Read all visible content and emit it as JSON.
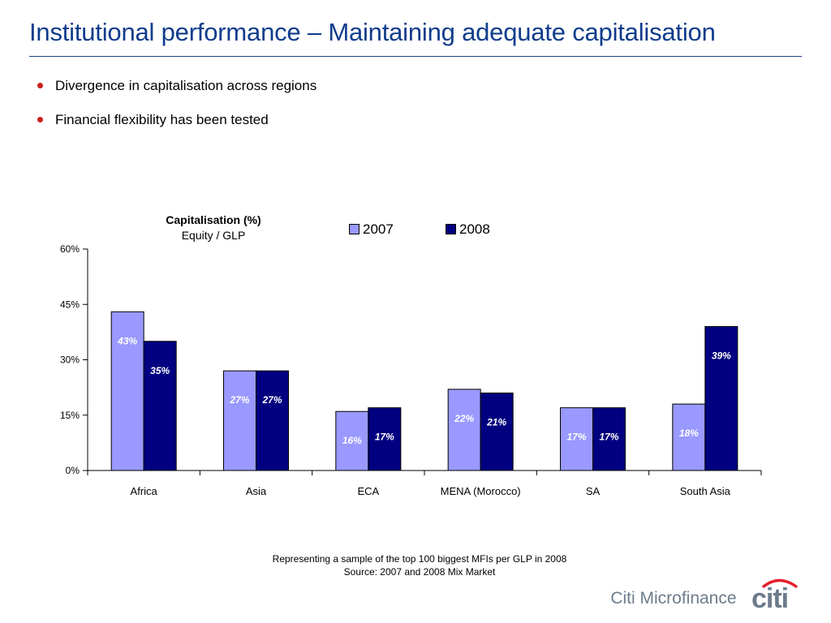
{
  "slide": {
    "title": "Institutional performance – Maintaining adequate capitalisation"
  },
  "bullets": [
    "Divergence in capitalisation across regions",
    "Financial flexibility has been tested"
  ],
  "chart_data": {
    "type": "bar",
    "title": "Capitalisation (%)",
    "subtitle": "Equity / GLP",
    "categories": [
      "Africa",
      "Asia",
      "ECA",
      "MENA (Morocco)",
      "SA",
      "South Asia"
    ],
    "series": [
      {
        "name": "2007",
        "values": [
          43,
          27,
          16,
          22,
          17,
          18
        ],
        "labels": [
          "43%",
          "27%",
          "16%",
          "22%",
          "17%",
          "18%"
        ],
        "color": "#9999ff"
      },
      {
        "name": "2008",
        "values": [
          35,
          27,
          17,
          21,
          17,
          39
        ],
        "labels": [
          "35%",
          "27%",
          "17%",
          "21%",
          "17%",
          "39%"
        ],
        "color": "#000080"
      }
    ],
    "ylim": [
      0,
      60
    ],
    "yticks": [
      0,
      15,
      30,
      45,
      60
    ],
    "ytick_labels": [
      "0%",
      "15%",
      "30%",
      "45%",
      "60%"
    ],
    "xlabel": "",
    "ylabel": "",
    "grid": false,
    "legend_position": "top"
  },
  "footnotes": [
    "Representing a sample of the top 100 biggest MFIs per GLP in 2008",
    "Source: 2007 and 2008 Mix Market"
  ],
  "brand": {
    "text": "Citi Microfinance",
    "logo_text": "citi",
    "text_color": "#6d7c8c",
    "arc_color": "#e4202c"
  }
}
